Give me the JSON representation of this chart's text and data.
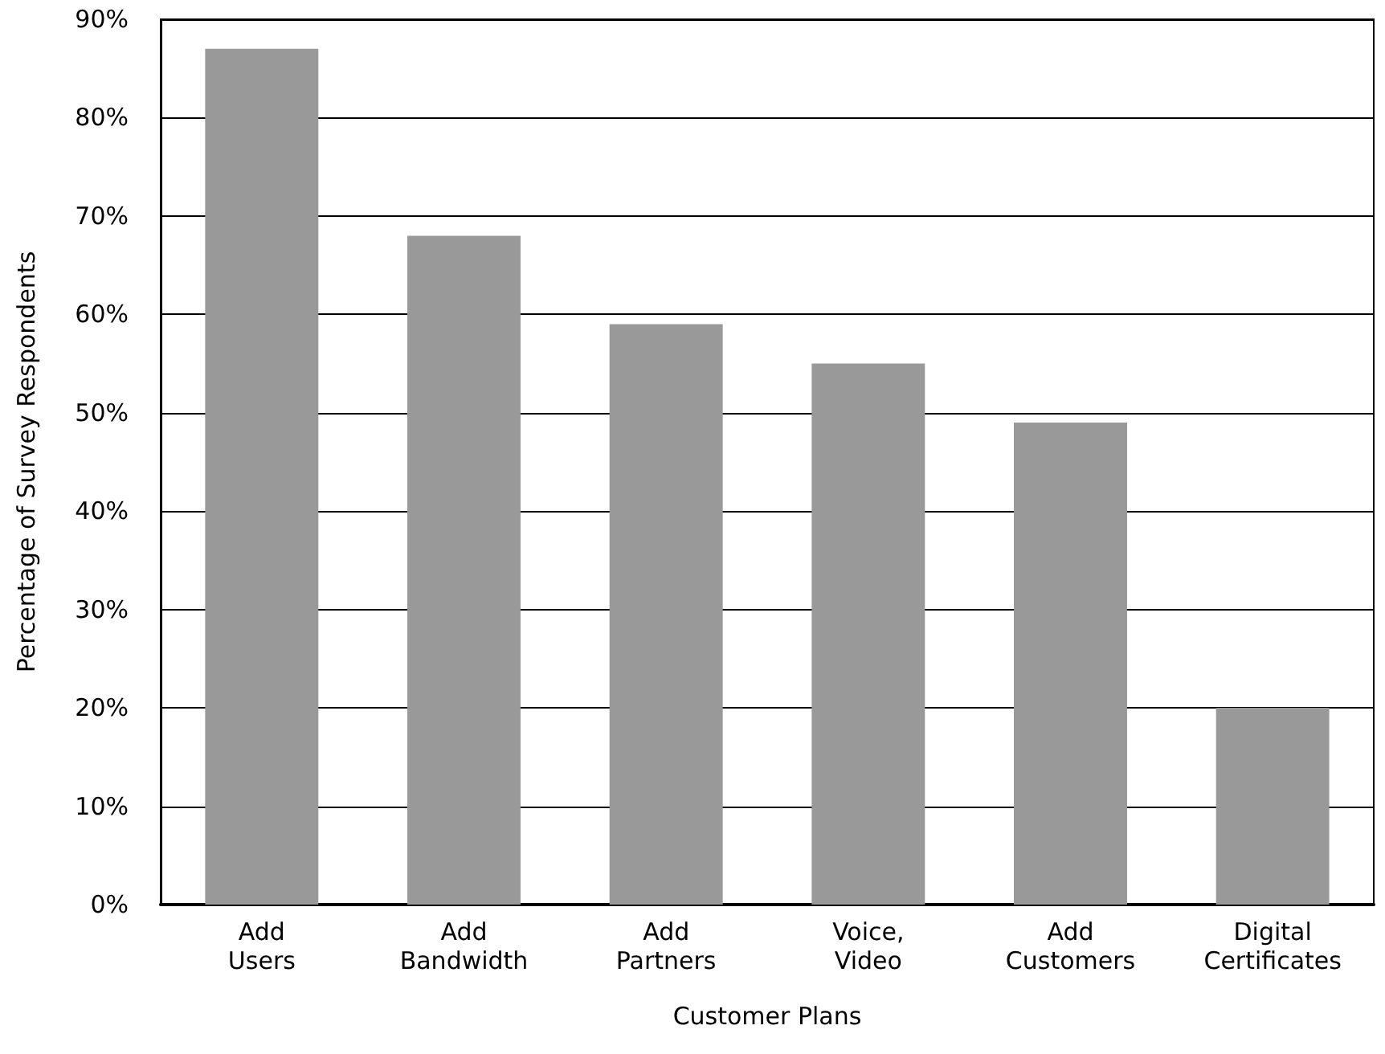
{
  "chart_data": {
    "type": "bar",
    "xlabel": "Customer Plans",
    "ylabel": "Percentage of Survey Respondents",
    "categories": [
      "Add Users",
      "Add Bandwidth",
      "Add Partners",
      "Voice, Video",
      "Add Customers",
      "Digital Certificates"
    ],
    "values": [
      87,
      68,
      59,
      55,
      49,
      20
    ],
    "color": "#999999",
    "ylim": [
      0,
      90
    ],
    "yticks": [
      {
        "value": 0,
        "label": "0%"
      },
      {
        "value": 10,
        "label": "10%"
      },
      {
        "value": 20,
        "label": "20%"
      },
      {
        "value": 30,
        "label": "30%"
      },
      {
        "value": 40,
        "label": "40%"
      },
      {
        "value": 50,
        "label": "50%"
      },
      {
        "value": 60,
        "label": "60%"
      },
      {
        "value": 70,
        "label": "70%"
      },
      {
        "value": 80,
        "label": "80%"
      },
      {
        "value": 90,
        "label": "90%"
      }
    ],
    "grid": "y"
  }
}
